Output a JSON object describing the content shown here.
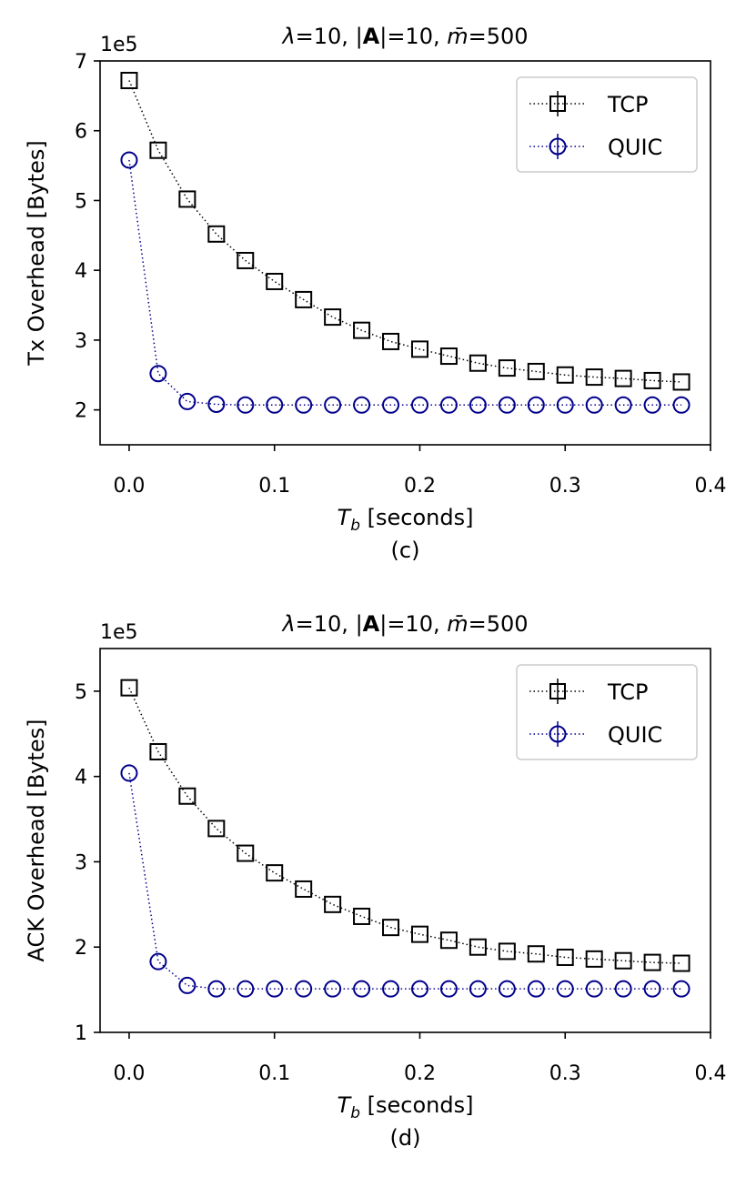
{
  "chart_data": [
    {
      "type": "line",
      "title": "λ=10, |A|=10, m̄=500",
      "title_parts": {
        "lambda": "λ",
        "lambda_val": "=10, |",
        "bold_A": "A",
        "a_val": "|=10, ",
        "m_bar": "m̄",
        "m_val": "=500"
      },
      "scale_label": "1e5",
      "xlabel_main": "T",
      "xlabel_sub": "b",
      "xlabel_rest": " [seconds]",
      "caption": "(c)",
      "ylabel": "Tx Overhead [Bytes]",
      "xlim": [
        -0.02,
        0.4
      ],
      "ylim": [
        1.5,
        7
      ],
      "xticks": [
        0.0,
        0.1,
        0.2,
        0.3,
        0.4
      ],
      "xtick_labels": [
        "0.0",
        "0.1",
        "0.2",
        "0.3",
        "0.4"
      ],
      "yticks": [
        2,
        3,
        4,
        5,
        6,
        7
      ],
      "ytick_labels": [
        "2",
        "3",
        "4",
        "5",
        "6",
        "7"
      ],
      "x": [
        0.0,
        0.02,
        0.04,
        0.06,
        0.08,
        0.1,
        0.12,
        0.14,
        0.16,
        0.18,
        0.2,
        0.22,
        0.24,
        0.26,
        0.28,
        0.3,
        0.32,
        0.34,
        0.36,
        0.38
      ],
      "legend_position": "top-right",
      "series": [
        {
          "name": "TCP",
          "color": "#000000",
          "marker": "square",
          "values": [
            6.72,
            5.72,
            5.02,
            4.52,
            4.14,
            3.84,
            3.58,
            3.33,
            3.14,
            2.98,
            2.87,
            2.77,
            2.67,
            2.6,
            2.55,
            2.5,
            2.47,
            2.45,
            2.42,
            2.4
          ]
        },
        {
          "name": "QUIC",
          "color": "#00008b",
          "marker": "circle",
          "values": [
            5.58,
            2.52,
            2.12,
            2.08,
            2.07,
            2.07,
            2.07,
            2.07,
            2.07,
            2.07,
            2.07,
            2.07,
            2.07,
            2.07,
            2.07,
            2.07,
            2.07,
            2.07,
            2.07,
            2.07
          ]
        }
      ]
    },
    {
      "type": "line",
      "title": "λ=10, |A|=10, m̄=500",
      "title_parts": {
        "lambda": "λ",
        "lambda_val": "=10, |",
        "bold_A": "A",
        "a_val": "|=10, ",
        "m_bar": "m̄",
        "m_val": "=500"
      },
      "scale_label": "1e5",
      "xlabel_main": "T",
      "xlabel_sub": "b",
      "xlabel_rest": " [seconds]",
      "caption": "(d)",
      "ylabel": "ACK Overhead [Bytes]",
      "xlim": [
        -0.02,
        0.4
      ],
      "ylim": [
        1,
        5.5
      ],
      "xticks": [
        0.0,
        0.1,
        0.2,
        0.3,
        0.4
      ],
      "xtick_labels": [
        "0.0",
        "0.1",
        "0.2",
        "0.3",
        "0.4"
      ],
      "yticks": [
        1,
        2,
        3,
        4,
        5
      ],
      "ytick_labels": [
        "1",
        "2",
        "3",
        "4",
        "5"
      ],
      "x": [
        0.0,
        0.02,
        0.04,
        0.06,
        0.08,
        0.1,
        0.12,
        0.14,
        0.16,
        0.18,
        0.2,
        0.22,
        0.24,
        0.26,
        0.28,
        0.3,
        0.32,
        0.34,
        0.36,
        0.38
      ],
      "legend_position": "top-right",
      "series": [
        {
          "name": "TCP",
          "color": "#000000",
          "marker": "square",
          "values": [
            5.04,
            4.29,
            3.77,
            3.39,
            3.1,
            2.87,
            2.68,
            2.5,
            2.36,
            2.23,
            2.15,
            2.08,
            2.0,
            1.95,
            1.92,
            1.88,
            1.86,
            1.84,
            1.82,
            1.81
          ]
        },
        {
          "name": "QUIC",
          "color": "#00008b",
          "marker": "circle",
          "values": [
            4.04,
            1.83,
            1.55,
            1.51,
            1.51,
            1.51,
            1.51,
            1.51,
            1.51,
            1.51,
            1.51,
            1.51,
            1.51,
            1.51,
            1.51,
            1.51,
            1.51,
            1.51,
            1.51,
            1.51
          ]
        }
      ]
    }
  ]
}
